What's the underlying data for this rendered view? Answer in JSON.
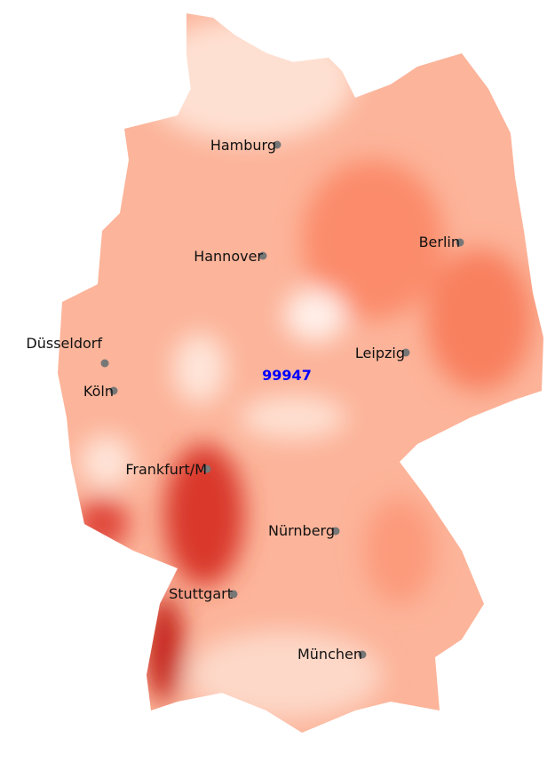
{
  "map": {
    "highlight_label": "99947",
    "highlight_color": "#0000ff",
    "colors": {
      "light": "#fee5d9",
      "mid": "#fc9272",
      "dark": "#de2d26",
      "darkest": "#a50f15"
    },
    "cities": [
      {
        "name": "Hamburg"
      },
      {
        "name": "Hannover"
      },
      {
        "name": "Berlin"
      },
      {
        "name": "Düsseldorf"
      },
      {
        "name": "Köln"
      },
      {
        "name": "Leipzig"
      },
      {
        "name": "Frankfurt/M"
      },
      {
        "name": "Nürnberg"
      },
      {
        "name": "Stuttgart"
      },
      {
        "name": "München"
      }
    ]
  }
}
